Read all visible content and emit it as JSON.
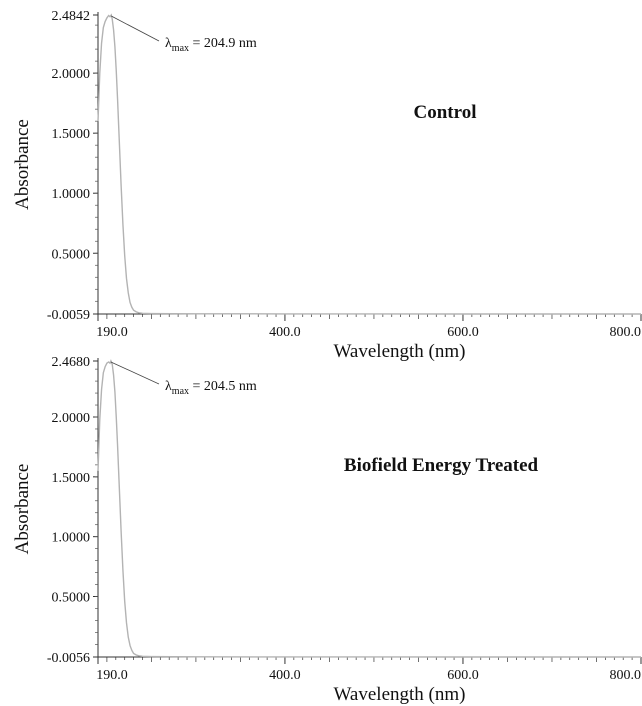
{
  "chart_data": [
    {
      "type": "line",
      "title": "Control",
      "xlabel": "Wavelength (nm)",
      "ylabel": "Absorbance",
      "xlim": [
        190.0,
        800.0
      ],
      "ylim": [
        -0.0059,
        2.4842
      ],
      "x_ticks": [
        "190.0",
        "400.0",
        "600.0",
        "800.0"
      ],
      "x_tick_values": [
        190.0,
        400.0,
        600.0,
        800.0
      ],
      "y_ticks": [
        "2.4842",
        "2.0000",
        "1.5000",
        "1.0000",
        "0.5000",
        "-0.0059"
      ],
      "y_tick_values": [
        2.4842,
        2.0,
        1.5,
        1.0,
        0.5,
        -0.0059
      ],
      "annotation": {
        "symbol": "λ",
        "subscript": "max",
        "text": " = 204.9 nm",
        "x": 204.9,
        "y": 2.4842
      },
      "line_color": "#b3b3b3",
      "series": [
        {
          "x": [
            190.0,
            192.0,
            194.0,
            196.0,
            198.0,
            200.0,
            202.0,
            203.5,
            204.9,
            206.0,
            207.5,
            209.0,
            210.5,
            212.0,
            214.0,
            216.0,
            218.0,
            220.0,
            222.0,
            224.0,
            226.0,
            228.0,
            230.0,
            233.0,
            236.0,
            240.0,
            250.0,
            300.0,
            400.0,
            500.0,
            600.0,
            700.0,
            800.0
          ],
          "y": [
            1.6,
            2.0,
            2.25,
            2.38,
            2.43,
            2.46,
            2.48,
            2.47,
            2.4842,
            2.45,
            2.36,
            2.22,
            2.02,
            1.78,
            1.42,
            1.06,
            0.74,
            0.48,
            0.29,
            0.17,
            0.09,
            0.05,
            0.025,
            0.012,
            0.004,
            0.0,
            -0.002,
            -0.004,
            -0.005,
            -0.0055,
            -0.0058,
            -0.0059,
            -0.0059
          ]
        }
      ]
    },
    {
      "type": "line",
      "title": "Biofield Energy Treated",
      "xlabel": "Wavelength (nm)",
      "ylabel": "Absorbance",
      "xlim": [
        190.0,
        800.0
      ],
      "ylim": [
        -0.0056,
        2.468
      ],
      "x_ticks": [
        "190.0",
        "400.0",
        "600.0",
        "800.0"
      ],
      "x_tick_values": [
        190.0,
        400.0,
        600.0,
        800.0
      ],
      "y_ticks": [
        "2.4680",
        "2.0000",
        "1.5000",
        "1.0000",
        "0.5000",
        "-0.0056"
      ],
      "y_tick_values": [
        2.468,
        2.0,
        1.5,
        1.0,
        0.5,
        -0.0056
      ],
      "annotation": {
        "symbol": "λ",
        "subscript": "max",
        "text": " = 204.5 nm",
        "x": 204.5,
        "y": 2.468
      },
      "line_color": "#b3b3b3",
      "series": [
        {
          "x": [
            190.0,
            192.0,
            194.0,
            196.0,
            198.0,
            200.0,
            202.0,
            203.5,
            204.5,
            206.0,
            207.5,
            209.0,
            210.5,
            212.0,
            214.0,
            216.0,
            218.0,
            220.0,
            222.0,
            224.0,
            226.0,
            228.0,
            230.0,
            233.0,
            236.0,
            240.0,
            250.0,
            300.0,
            400.0,
            500.0,
            600.0,
            700.0,
            800.0
          ],
          "y": [
            1.55,
            1.98,
            2.23,
            2.37,
            2.42,
            2.45,
            2.46,
            2.45,
            2.468,
            2.44,
            2.35,
            2.21,
            2.0,
            1.76,
            1.4,
            1.04,
            0.72,
            0.46,
            0.28,
            0.16,
            0.09,
            0.05,
            0.024,
            0.011,
            0.004,
            0.0,
            -0.002,
            -0.004,
            -0.005,
            -0.0054,
            -0.0055,
            -0.0056,
            -0.0056
          ]
        }
      ]
    }
  ]
}
